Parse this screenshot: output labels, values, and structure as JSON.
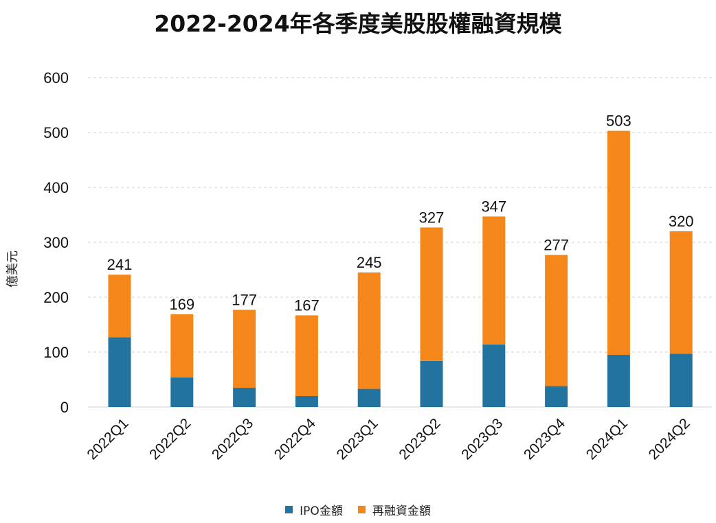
{
  "chart_data": {
    "type": "bar",
    "stacked": true,
    "title": "2022-2024年各季度美股股權融資規模",
    "xlabel": "",
    "ylabel": "億美元",
    "ylim": [
      0,
      600
    ],
    "yticks": [
      "0",
      "100",
      "200",
      "300",
      "400",
      "500",
      "600"
    ],
    "grid": true,
    "legend_position": "bottom",
    "categories": [
      "2022Q1",
      "2022Q2",
      "2022Q3",
      "2022Q4",
      "2023Q1",
      "2023Q2",
      "2023Q3",
      "2023Q4",
      "2024Q1",
      "2024Q2"
    ],
    "series": [
      {
        "name": "IPO金額",
        "color": "#22739f",
        "values": [
          127,
          54,
          35,
          20,
          33,
          84,
          114,
          38,
          95,
          97
        ]
      },
      {
        "name": "再融資金額",
        "color": "#f5871a",
        "values": [
          114,
          115,
          142,
          147,
          212,
          243,
          233,
          239,
          408,
          223
        ]
      }
    ],
    "totals": [
      241,
      169,
      177,
      167,
      245,
      327,
      347,
      277,
      503,
      320
    ],
    "total_labels": [
      "241",
      "169",
      "177",
      "167",
      "245",
      "327",
      "347",
      "277",
      "503",
      "320"
    ]
  }
}
